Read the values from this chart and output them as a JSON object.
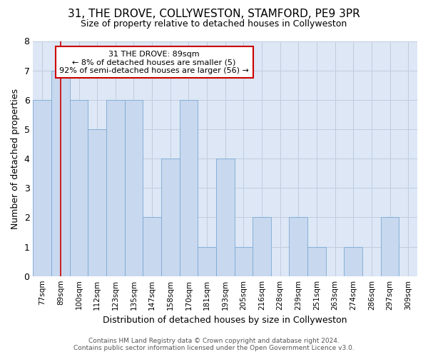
{
  "title1": "31, THE DROVE, COLLYWESTON, STAMFORD, PE9 3PR",
  "title2": "Size of property relative to detached houses in Collyweston",
  "xlabel": "Distribution of detached houses by size in Collyweston",
  "ylabel": "Number of detached properties",
  "footer1": "Contains HM Land Registry data © Crown copyright and database right 2024.",
  "footer2": "Contains public sector information licensed under the Open Government Licence v3.0.",
  "annotation_line1": "31 THE DROVE: 89sqm",
  "annotation_line2": "← 8% of detached houses are smaller (5)",
  "annotation_line3": "92% of semi-detached houses are larger (56) →",
  "subject_x": "89sqm",
  "bar_color": "#c8d8ef",
  "bar_edge_color": "#7baad4",
  "subject_line_color": "#cc0000",
  "annotation_box_color": "#cc0000",
  "grid_color": "#c0cce0",
  "background_color": "#dde7f5",
  "categories": [
    "77sqm",
    "89sqm",
    "100sqm",
    "112sqm",
    "123sqm",
    "135sqm",
    "147sqm",
    "158sqm",
    "170sqm",
    "181sqm",
    "193sqm",
    "205sqm",
    "216sqm",
    "228sqm",
    "239sqm",
    "251sqm",
    "263sqm",
    "274sqm",
    "286sqm",
    "297sqm",
    "309sqm"
  ],
  "values": [
    6,
    7,
    6,
    5,
    6,
    6,
    2,
    4,
    6,
    1,
    4,
    1,
    2,
    0,
    2,
    1,
    0,
    1,
    0,
    2,
    0
  ],
  "ylim": [
    0,
    8
  ],
  "yticks": [
    0,
    1,
    2,
    3,
    4,
    5,
    6,
    7,
    8
  ]
}
